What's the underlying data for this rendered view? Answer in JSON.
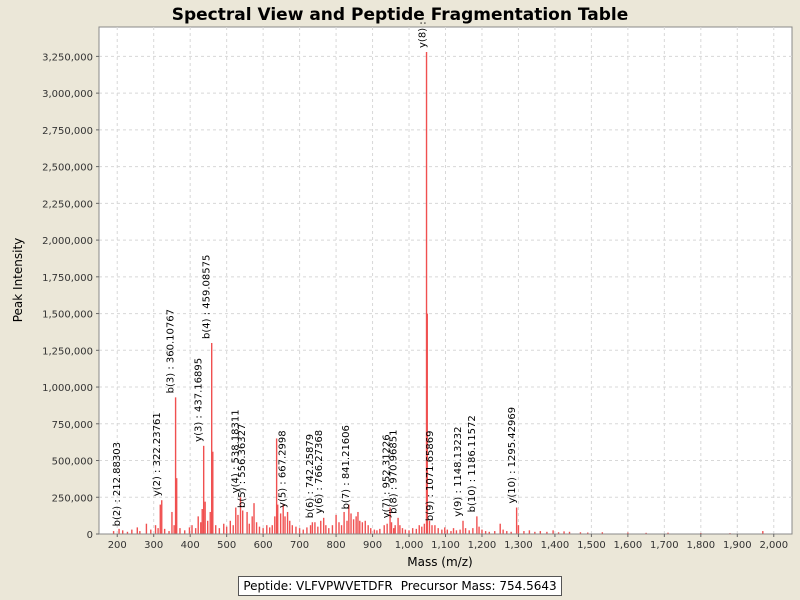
{
  "chart_data": {
    "type": "bar",
    "title": "Spectral View and Peptide Fragmentation Table",
    "xlabel": "Mass (m/z)",
    "ylabel": "Peak Intensity",
    "xlim": [
      150,
      2050
    ],
    "ylim": [
      0,
      3450000
    ],
    "xticks": [
      200,
      300,
      400,
      500,
      600,
      700,
      800,
      900,
      1000,
      1100,
      1200,
      1300,
      1400,
      1500,
      1600,
      1700,
      1800,
      1900,
      2000
    ],
    "xtick_labels": [
      "200",
      "300",
      "400",
      "500",
      "600",
      "700",
      "800",
      "900",
      "1,000",
      "1,100",
      "1,200",
      "1,300",
      "1,400",
      "1,500",
      "1,600",
      "1,700",
      "1,800",
      "1,900",
      "2,000"
    ],
    "yticks": [
      0,
      250000,
      500000,
      750000,
      1000000,
      1250000,
      1500000,
      1750000,
      2000000,
      2250000,
      2500000,
      2750000,
      3000000,
      3250000
    ],
    "ytick_labels": [
      "0",
      "250,000",
      "500,000",
      "750,000",
      "1,000,000",
      "1,250,000",
      "1,500,000",
      "1,750,000",
      "2,000,000",
      "2,250,000",
      "2,500,000",
      "2,750,000",
      "3,000,000",
      "3,250,000"
    ],
    "grid": true,
    "bar_color": "#f05050",
    "annotations": [
      {
        "x": 212.88303,
        "text": "b(2) : 212.88303"
      },
      {
        "x": 322.23761,
        "text": "y(2) : 322.23761"
      },
      {
        "x": 360.10767,
        "text": "b(3) : 360.10767"
      },
      {
        "x": 437.16895,
        "text": "y(3) : 437.16895"
      },
      {
        "x": 459.08575,
        "text": "b(4) : 459.08575"
      },
      {
        "x": 538.18311,
        "text": "y(4) : 538.18311"
      },
      {
        "x": 556.36327,
        "text": "b(5) : 556.36327"
      },
      {
        "x": 667.2998,
        "text": "y(5) : 667.2998"
      },
      {
        "x": 742.25879,
        "text": "b(6) : 742.25879"
      },
      {
        "x": 766.27368,
        "text": "y(6) : 766.27368"
      },
      {
        "x": 841.21606,
        "text": "b(7) : 841.21606"
      },
      {
        "x": 952.31226,
        "text": "y(7) : 952.31226"
      },
      {
        "x": 970.96851,
        "text": "b(8) : 970.96851"
      },
      {
        "x": 1071.65869,
        "text": "b(9) : 1071.65869"
      },
      {
        "x": 1148.13232,
        "text": "y(9) : 1148.13232"
      },
      {
        "x": 1186.11572,
        "text": "b(10) : 1186.11572"
      },
      {
        "x": 1295.42969,
        "text": "y(10) : 1295.42969"
      },
      {
        "x": 1050.0,
        "text": "y(8) : "
      }
    ],
    "peaks": [
      [
        190,
        20000
      ],
      [
        205,
        35000
      ],
      [
        215,
        25000
      ],
      [
        228,
        15000
      ],
      [
        240,
        30000
      ],
      [
        255,
        45000
      ],
      [
        262,
        20000
      ],
      [
        280,
        70000
      ],
      [
        292,
        30000
      ],
      [
        305,
        60000
      ],
      [
        312,
        40000
      ],
      [
        318,
        200000
      ],
      [
        322,
        230000
      ],
      [
        330,
        35000
      ],
      [
        342,
        20000
      ],
      [
        350,
        150000
      ],
      [
        356,
        60000
      ],
      [
        360,
        930000
      ],
      [
        363,
        380000
      ],
      [
        372,
        40000
      ],
      [
        385,
        25000
      ],
      [
        398,
        45000
      ],
      [
        405,
        60000
      ],
      [
        415,
        40000
      ],
      [
        422,
        120000
      ],
      [
        429,
        80000
      ],
      [
        433,
        170000
      ],
      [
        437,
        600000
      ],
      [
        441,
        220000
      ],
      [
        448,
        90000
      ],
      [
        455,
        150000
      ],
      [
        459,
        1300000
      ],
      [
        462,
        560000
      ],
      [
        470,
        60000
      ],
      [
        480,
        40000
      ],
      [
        492,
        70000
      ],
      [
        500,
        50000
      ],
      [
        510,
        90000
      ],
      [
        518,
        60000
      ],
      [
        525,
        180000
      ],
      [
        531,
        130000
      ],
      [
        538,
        250000
      ],
      [
        544,
        160000
      ],
      [
        556,
        150000
      ],
      [
        562,
        70000
      ],
      [
        570,
        120000
      ],
      [
        575,
        210000
      ],
      [
        582,
        80000
      ],
      [
        590,
        50000
      ],
      [
        600,
        40000
      ],
      [
        610,
        60000
      ],
      [
        618,
        45000
      ],
      [
        625,
        60000
      ],
      [
        632,
        120000
      ],
      [
        637,
        650000
      ],
      [
        640,
        200000
      ],
      [
        648,
        140000
      ],
      [
        655,
        200000
      ],
      [
        660,
        120000
      ],
      [
        667,
        150000
      ],
      [
        673,
        90000
      ],
      [
        680,
        60000
      ],
      [
        690,
        50000
      ],
      [
        700,
        40000
      ],
      [
        710,
        30000
      ],
      [
        720,
        45000
      ],
      [
        730,
        60000
      ],
      [
        735,
        80000
      ],
      [
        742,
        80000
      ],
      [
        750,
        50000
      ],
      [
        758,
        90000
      ],
      [
        766,
        110000
      ],
      [
        772,
        60000
      ],
      [
        780,
        40000
      ],
      [
        790,
        60000
      ],
      [
        800,
        130000
      ],
      [
        808,
        80000
      ],
      [
        815,
        60000
      ],
      [
        822,
        150000
      ],
      [
        830,
        90000
      ],
      [
        835,
        200000
      ],
      [
        841,
        140000
      ],
      [
        848,
        100000
      ],
      [
        855,
        120000
      ],
      [
        860,
        150000
      ],
      [
        865,
        90000
      ],
      [
        872,
        80000
      ],
      [
        880,
        90000
      ],
      [
        888,
        60000
      ],
      [
        895,
        40000
      ],
      [
        905,
        30000
      ],
      [
        912,
        25000
      ],
      [
        920,
        35000
      ],
      [
        932,
        60000
      ],
      [
        940,
        70000
      ],
      [
        948,
        180000
      ],
      [
        952,
        80000
      ],
      [
        958,
        40000
      ],
      [
        962,
        60000
      ],
      [
        970,
        110000
      ],
      [
        975,
        60000
      ],
      [
        982,
        40000
      ],
      [
        990,
        30000
      ],
      [
        1000,
        25000
      ],
      [
        1010,
        40000
      ],
      [
        1020,
        35000
      ],
      [
        1028,
        60000
      ],
      [
        1035,
        50000
      ],
      [
        1042,
        70000
      ],
      [
        1048,
        3280000
      ],
      [
        1050,
        1500000
      ],
      [
        1056,
        90000
      ],
      [
        1063,
        60000
      ],
      [
        1071,
        60000
      ],
      [
        1080,
        40000
      ],
      [
        1090,
        30000
      ],
      [
        1098,
        45000
      ],
      [
        1105,
        30000
      ],
      [
        1115,
        20000
      ],
      [
        1122,
        40000
      ],
      [
        1130,
        25000
      ],
      [
        1140,
        30000
      ],
      [
        1148,
        90000
      ],
      [
        1155,
        40000
      ],
      [
        1165,
        25000
      ],
      [
        1175,
        40000
      ],
      [
        1186,
        120000
      ],
      [
        1192,
        50000
      ],
      [
        1200,
        30000
      ],
      [
        1210,
        20000
      ],
      [
        1220,
        15000
      ],
      [
        1235,
        20000
      ],
      [
        1250,
        70000
      ],
      [
        1258,
        30000
      ],
      [
        1268,
        20000
      ],
      [
        1280,
        15000
      ],
      [
        1295,
        180000
      ],
      [
        1300,
        60000
      ],
      [
        1315,
        20000
      ],
      [
        1330,
        25000
      ],
      [
        1345,
        15000
      ],
      [
        1360,
        20000
      ],
      [
        1378,
        15000
      ],
      [
        1395,
        25000
      ],
      [
        1410,
        12000
      ],
      [
        1425,
        18000
      ],
      [
        1440,
        15000
      ],
      [
        1470,
        12000
      ],
      [
        1490,
        10000
      ],
      [
        1530,
        12000
      ],
      [
        1600,
        10000
      ],
      [
        1650,
        8000
      ],
      [
        1710,
        9000
      ],
      [
        1800,
        7000
      ],
      [
        1880,
        6000
      ],
      [
        1970,
        20000
      ]
    ]
  },
  "footer": {
    "peptide": "Peptide: VLFVPWVETDFR",
    "precursor": "Precursor Mass: 754.5643"
  }
}
